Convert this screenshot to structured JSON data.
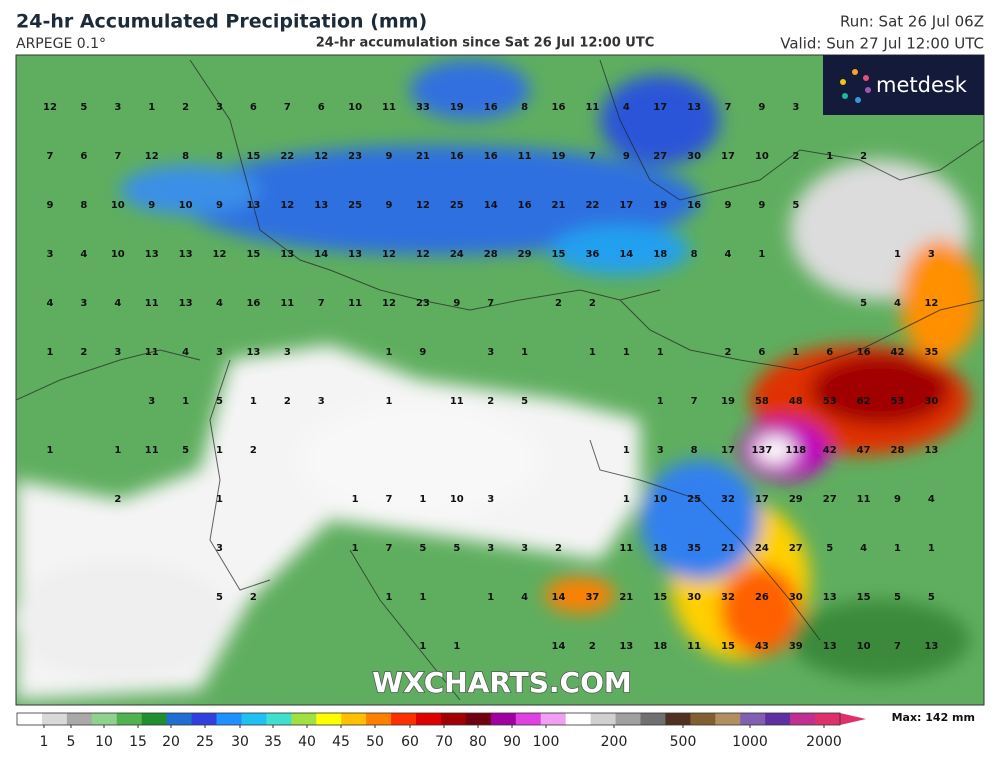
{
  "header": {
    "title": "24-hr Accumulated Precipitation (mm)",
    "model": "ARPEGE 0.1°",
    "subtitle": "24-hr accumulation since Sat 26 Jul 12:00 UTC",
    "run": "Run: Sat 26 Jul 06Z",
    "valid": "Valid: Sun 27 Jul 12:00 UTC"
  },
  "logo": "metdesk",
  "watermark": "WXCHARTS.COM",
  "map_labels": [
    [
      12,
      5,
      3,
      1,
      2,
      3,
      6,
      7,
      6,
      10,
      11,
      33,
      19,
      16,
      8,
      16,
      11,
      4,
      17,
      13,
      7,
      9,
      3,
      null,
      null,
      null,
      null
    ],
    [
      7,
      6,
      7,
      12,
      8,
      8,
      15,
      22,
      12,
      23,
      9,
      21,
      16,
      16,
      11,
      19,
      7,
      9,
      27,
      30,
      17,
      10,
      2,
      1,
      2,
      null,
      null
    ],
    [
      9,
      8,
      10,
      9,
      10,
      9,
      13,
      12,
      13,
      25,
      9,
      12,
      25,
      14,
      16,
      21,
      22,
      17,
      19,
      16,
      9,
      9,
      5,
      null,
      null,
      null,
      null
    ],
    [
      3,
      4,
      10,
      13,
      13,
      12,
      15,
      13,
      14,
      13,
      12,
      12,
      24,
      28,
      29,
      15,
      36,
      14,
      18,
      8,
      4,
      1,
      null,
      null,
      null,
      1,
      3
    ],
    [
      4,
      3,
      4,
      11,
      13,
      4,
      16,
      11,
      7,
      11,
      12,
      23,
      9,
      7,
      null,
      2,
      2,
      null,
      null,
      null,
      null,
      null,
      null,
      null,
      5,
      4,
      12
    ],
    [
      1,
      2,
      3,
      11,
      4,
      3,
      13,
      3,
      null,
      null,
      1,
      9,
      null,
      3,
      1,
      null,
      1,
      1,
      1,
      null,
      2,
      6,
      1,
      6,
      16,
      42,
      35
    ],
    [
      null,
      null,
      null,
      3,
      1,
      5,
      1,
      2,
      3,
      null,
      1,
      null,
      11,
      2,
      5,
      null,
      null,
      null,
      1,
      7,
      19,
      58,
      48,
      53,
      62,
      53,
      30
    ],
    [
      1,
      null,
      1,
      11,
      5,
      1,
      2,
      null,
      null,
      null,
      null,
      null,
      null,
      null,
      null,
      null,
      null,
      1,
      3,
      8,
      17,
      137,
      118,
      42,
      47,
      28,
      13
    ],
    [
      null,
      null,
      2,
      null,
      null,
      1,
      null,
      null,
      null,
      1,
      7,
      1,
      10,
      3,
      null,
      null,
      null,
      1,
      10,
      25,
      32,
      17,
      29,
      27,
      11,
      9,
      4
    ],
    [
      null,
      null,
      null,
      null,
      null,
      3,
      null,
      null,
      null,
      1,
      7,
      5,
      5,
      3,
      3,
      2,
      null,
      11,
      18,
      35,
      21,
      24,
      27,
      5,
      4,
      1,
      1
    ],
    [
      null,
      null,
      null,
      null,
      null,
      5,
      2,
      null,
      null,
      null,
      1,
      1,
      null,
      1,
      4,
      14,
      37,
      21,
      15,
      30,
      32,
      26,
      30,
      13,
      15,
      5,
      5
    ],
    [
      null,
      null,
      null,
      null,
      null,
      null,
      null,
      null,
      null,
      null,
      null,
      1,
      1,
      null,
      null,
      14,
      2,
      13,
      18,
      11,
      15,
      43,
      39,
      13,
      10,
      7,
      13
    ]
  ],
  "legend": {
    "ticks": [
      1,
      5,
      10,
      15,
      20,
      25,
      30,
      35,
      40,
      45,
      50,
      60,
      70,
      80,
      90,
      100,
      200,
      500,
      1000,
      2000
    ],
    "colors": [
      "#ffffff",
      "#d9d9d9",
      "#a9a9a9",
      "#8fd18f",
      "#4fb34f",
      "#1f8f2f",
      "#1f6fd0",
      "#2f3fe0",
      "#1e90ff",
      "#20c0f0",
      "#40e0d0",
      "#a0e040",
      "#ffff00",
      "#ffc000",
      "#ff8000",
      "#ff3000",
      "#e00000",
      "#a00000",
      "#700010",
      "#a000a0",
      "#e040e0",
      "#f0a0f0",
      "#ffffff",
      "#d0d0d0",
      "#a0a0a0",
      "#707070",
      "#503020",
      "#806030",
      "#b09060",
      "#8060b0",
      "#6030a0",
      "#c03090",
      "#e0306a"
    ],
    "max": "Max: 142 mm"
  }
}
